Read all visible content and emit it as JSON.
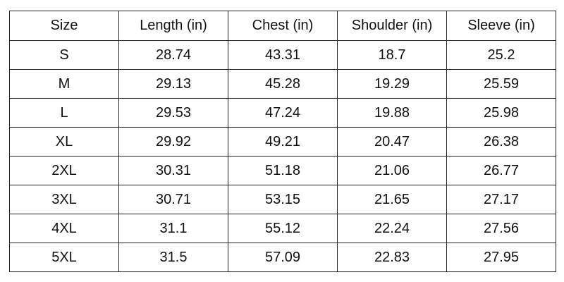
{
  "table": {
    "header": [
      "Size",
      "Length (in)",
      "Chest (in)",
      "Shoulder (in)",
      "Sleeve (in)"
    ],
    "rows": [
      [
        "S",
        "28.74",
        "43.31",
        "18.7",
        "25.2"
      ],
      [
        "M",
        "29.13",
        "45.28",
        "19.29",
        "25.59"
      ],
      [
        "L",
        "29.53",
        "47.24",
        "19.88",
        "25.98"
      ],
      [
        "XL",
        "29.92",
        "49.21",
        "20.47",
        "26.38"
      ],
      [
        "2XL",
        "30.31",
        "51.18",
        "21.06",
        "26.77"
      ],
      [
        "3XL",
        "30.71",
        "53.15",
        "21.65",
        "27.17"
      ],
      [
        "4XL",
        "31.1",
        "55.12",
        "22.24",
        "27.56"
      ],
      [
        "5XL",
        "31.5",
        "57.09",
        "22.83",
        "27.95"
      ]
    ]
  }
}
